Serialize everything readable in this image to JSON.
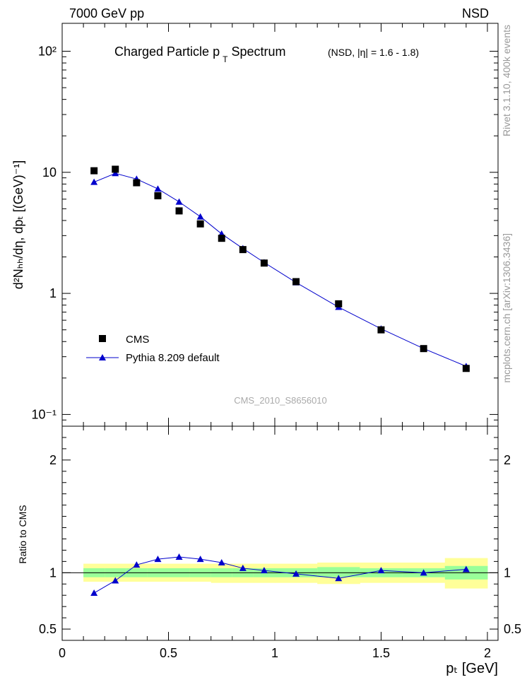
{
  "header": {
    "left": "7000 GeV pp",
    "right": "NSD"
  },
  "side": {
    "top": "Rivet 3.1.10,  400k events",
    "bottom": "mcplots.cern.ch [arXiv:1306.3436]"
  },
  "title": {
    "main": "Charged Particle p",
    "sub": "T",
    "main2": " Spectrum",
    "small": "(NSD, |η| = 1.6 - 1.8)"
  },
  "watermark": "CMS_2010_S8656010",
  "ylabel_main": "d²Nₕₕ/dη, dpₜ [(GeV)⁻¹]",
  "ylabel_ratio": "Ratio to CMS",
  "xlabel": "pₜ [GeV]",
  "legend": {
    "data": "CMS",
    "mc": "Pythia 8.209 default"
  },
  "colors": {
    "data": "#000000",
    "mc": "#0000cc",
    "band_inner": "#99ff99",
    "band_outer": "#ffff99"
  },
  "chart_data": [
    {
      "type": "scatter",
      "title": "Charged Particle pT Spectrum (NSD, |η| = 1.6 - 1.8)",
      "xlabel": "pT [GeV]",
      "ylabel": "d²Nch/dη, dpT [(GeV)⁻¹]",
      "yscale": "log",
      "xlim": [
        0,
        2.05
      ],
      "ylim": [
        0.08,
        170
      ],
      "yticks": [
        0.1,
        1,
        10,
        100
      ],
      "ytick_labels": [
        "10⁻¹",
        "1",
        "10",
        "10²"
      ],
      "legend_position": "bottom-left",
      "series": [
        {
          "name": "CMS",
          "style": "square markers",
          "x": [
            0.15,
            0.25,
            0.35,
            0.45,
            0.55,
            0.65,
            0.75,
            0.85,
            0.95,
            1.1,
            1.3,
            1.5,
            1.7,
            1.9
          ],
          "y": [
            10.3,
            10.6,
            8.2,
            6.4,
            4.8,
            3.75,
            2.85,
            2.3,
            1.78,
            1.25,
            0.82,
            0.5,
            0.35,
            0.24
          ]
        },
        {
          "name": "Pythia 8.209 default",
          "style": "line with triangle markers",
          "x": [
            0.15,
            0.25,
            0.35,
            0.45,
            0.55,
            0.65,
            0.75,
            0.85,
            0.95,
            1.1,
            1.3,
            1.5,
            1.7,
            1.9
          ],
          "y": [
            8.3,
            9.8,
            8.8,
            7.3,
            5.7,
            4.3,
            3.1,
            2.35,
            1.8,
            1.23,
            0.77,
            0.51,
            0.35,
            0.25
          ]
        }
      ]
    },
    {
      "type": "line",
      "ylabel": "Ratio to CMS",
      "xlabel": "pT [GeV]",
      "xlim": [
        0,
        2.05
      ],
      "ylim": [
        0.4,
        2.3
      ],
      "xticks": [
        0,
        0.5,
        1,
        1.5,
        2
      ],
      "xtick_labels": [
        "0",
        "0.5",
        "1",
        "1.5",
        "2"
      ],
      "yticks": [
        0.5,
        1,
        2
      ],
      "ytick_labels": [
        "0.5",
        "1",
        "2"
      ],
      "band": {
        "edges": [
          0.1,
          0.2,
          0.3,
          0.4,
          0.5,
          0.6,
          0.7,
          0.8,
          0.9,
          1.0,
          1.2,
          1.4,
          1.6,
          1.8,
          2.0
        ],
        "inner_low": [
          0.96,
          0.96,
          0.96,
          0.96,
          0.96,
          0.96,
          0.96,
          0.96,
          0.96,
          0.96,
          0.96,
          0.96,
          0.96,
          0.94
        ],
        "inner_high": [
          1.04,
          1.04,
          1.04,
          1.04,
          1.04,
          1.04,
          1.04,
          1.04,
          1.04,
          1.04,
          1.05,
          1.04,
          1.04,
          1.06
        ],
        "outer_low": [
          0.92,
          0.92,
          0.92,
          0.92,
          0.92,
          0.92,
          0.91,
          0.91,
          0.91,
          0.91,
          0.9,
          0.91,
          0.91,
          0.86
        ],
        "outer_high": [
          1.08,
          1.08,
          1.08,
          1.08,
          1.08,
          1.08,
          1.08,
          1.08,
          1.08,
          1.08,
          1.09,
          1.09,
          1.09,
          1.13
        ]
      },
      "series": [
        {
          "name": "Pythia 8.209 default",
          "x": [
            0.15,
            0.25,
            0.35,
            0.45,
            0.55,
            0.65,
            0.75,
            0.85,
            0.95,
            1.1,
            1.3,
            1.5,
            1.7,
            1.9
          ],
          "y": [
            0.82,
            0.93,
            1.07,
            1.12,
            1.14,
            1.12,
            1.09,
            1.04,
            1.02,
            0.99,
            0.95,
            1.02,
            1.0,
            1.03
          ]
        }
      ]
    }
  ]
}
